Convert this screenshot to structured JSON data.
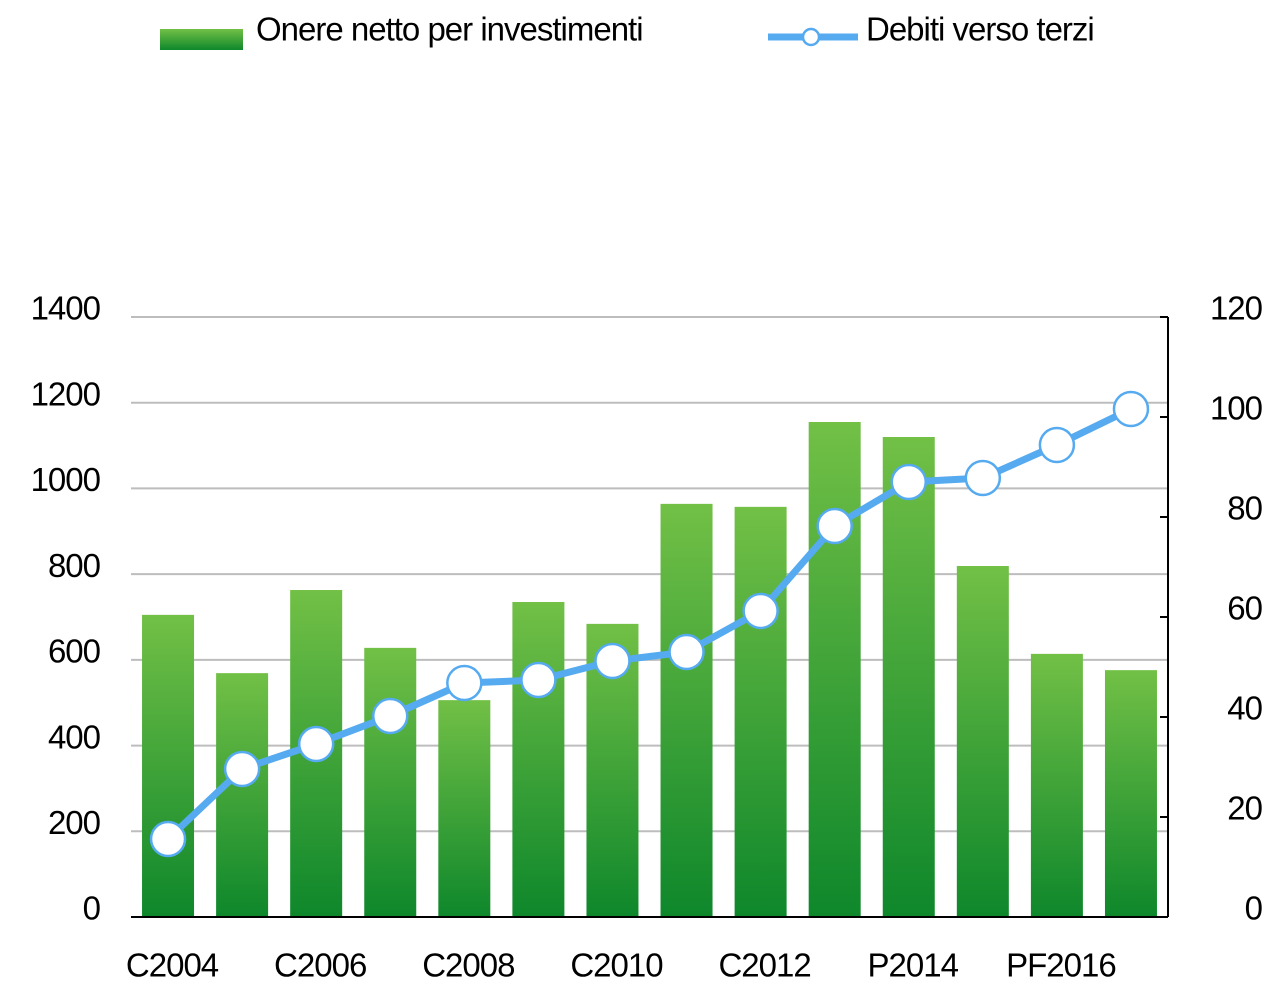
{
  "chart_data": {
    "type": "bar_line",
    "categories": [
      "C2004",
      null,
      "C2006",
      null,
      "C2008",
      null,
      "C2010",
      null,
      "C2012",
      null,
      "P2014",
      null,
      "PF2016",
      null
    ],
    "series": [
      {
        "name": "Onere netto per investimenti",
        "type": "bar",
        "color": "#4faa3a",
        "values": [
          705,
          569,
          763,
          628,
          506,
          735,
          684,
          964,
          957,
          1155,
          1120,
          819,
          614,
          576
        ]
      },
      {
        "name": "Debiti verso terzi",
        "type": "line",
        "axis": "y2",
        "color": "#55aaf0",
        "values": [
          15.6,
          29.6,
          34.6,
          40.2,
          46.8,
          47.4,
          51.2,
          53,
          61.2,
          78.2,
          87,
          87.8,
          94.4,
          101.6
        ]
      }
    ],
    "ylim": [
      0,
      1400
    ],
    "yticks": [
      0,
      200,
      400,
      600,
      800,
      1000,
      1200,
      1400
    ],
    "y2lim": [
      0,
      120
    ],
    "y2ticks": [
      0,
      20,
      40,
      60,
      80,
      100,
      120
    ],
    "grid": true,
    "legend": "top"
  }
}
